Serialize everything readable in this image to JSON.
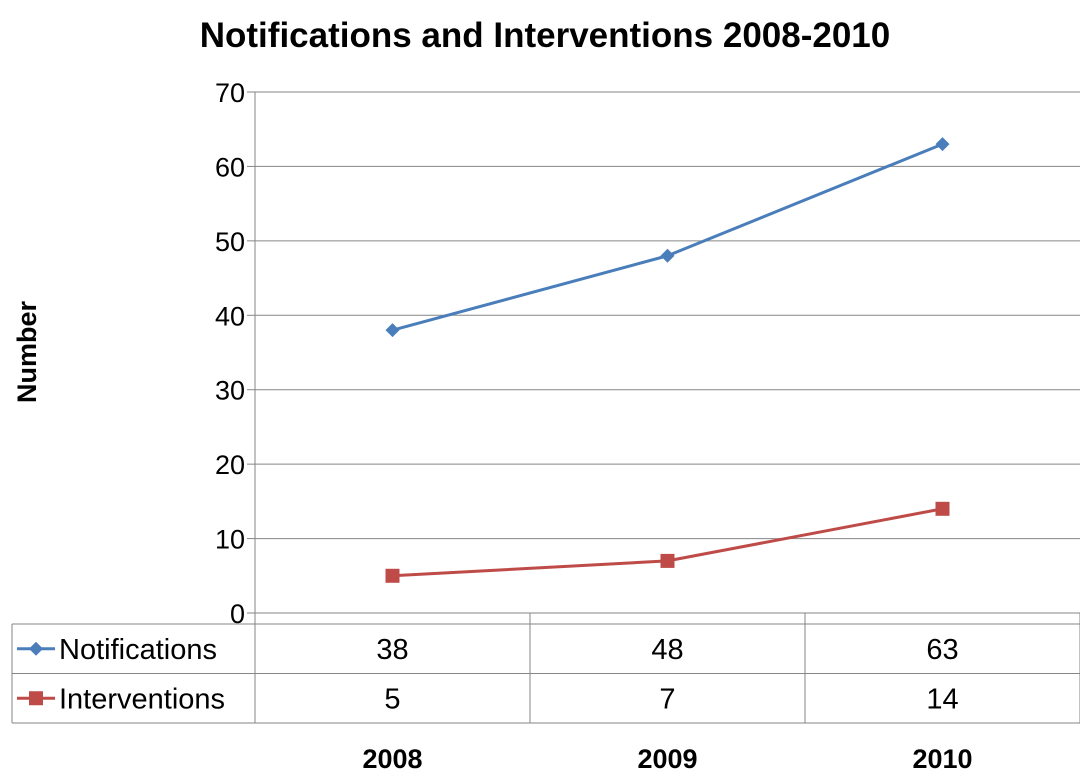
{
  "chart_data": {
    "type": "line",
    "title": "Notifications and Interventions 2008-2010",
    "ylabel": "Number",
    "xlabel": "",
    "categories": [
      "2008",
      "2009",
      "2010"
    ],
    "ylim": [
      0,
      70
    ],
    "yticks": [
      0,
      10,
      20,
      30,
      40,
      50,
      60,
      70
    ],
    "grid": true,
    "legend": "data-table",
    "series": [
      {
        "name": "Notifications",
        "values": [
          38,
          48,
          63
        ],
        "color": "#4a7ebb",
        "marker": "diamond"
      },
      {
        "name": "Interventions",
        "values": [
          5,
          7,
          14
        ],
        "color": "#be4b48",
        "marker": "square"
      }
    ]
  }
}
